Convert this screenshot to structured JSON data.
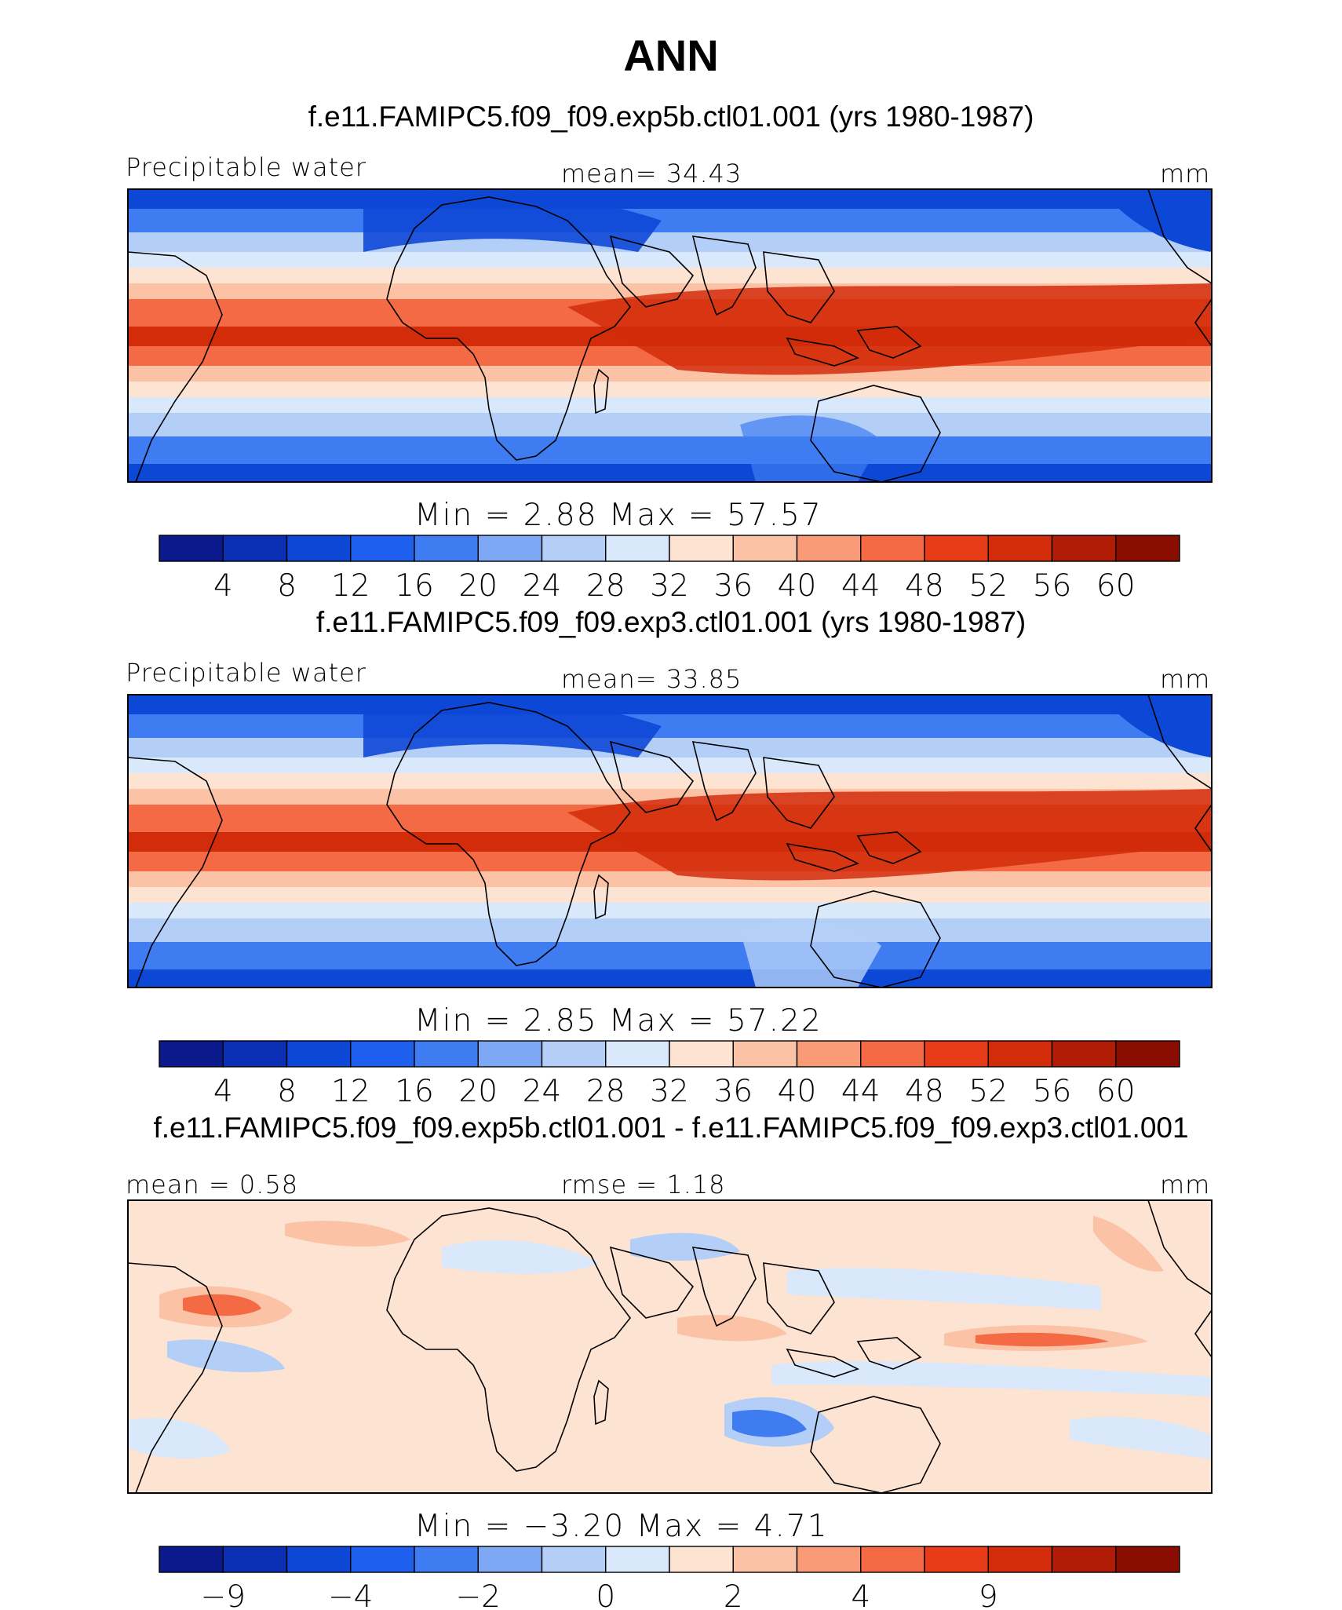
{
  "figure": {
    "title": "ANN",
    "panels": [
      {
        "case": "f.e11.FAMIPC5.f09_f09.exp5b.ctl01.001 (yrs 1980-1987)",
        "left_label": "Precipitable water",
        "center_label": "mean=   34.43",
        "units": "mm",
        "minmax": "Min  =    2.88  Max  =   57.57",
        "kind": "abs"
      },
      {
        "case": "f.e11.FAMIPC5.f09_f09.exp3.ctl01.001 (yrs 1980-1987)",
        "left_label": "Precipitable water",
        "center_label": "mean=   33.85",
        "units": "mm",
        "minmax": "Min  =    2.85  Max  =   57.22",
        "kind": "abs"
      },
      {
        "case": "f.e11.FAMIPC5.f09_f09.exp5b.ctl01.001 - f.e11.FAMIPC5.f09_f09.exp3.ctl01.001",
        "left_label": "mean  =    0.58",
        "center_label": "rmse  =    1.18",
        "units": "mm",
        "minmax": "Min  =   −3.20  Max  =    4.71",
        "kind": "diff"
      }
    ],
    "abs_colorbar": {
      "ticks": [
        "4",
        "8",
        "12",
        "16",
        "20",
        "24",
        "28",
        "32",
        "36",
        "40",
        "44",
        "48",
        "52",
        "56",
        "60"
      ],
      "colors": [
        "#0a1a8c",
        "#0a2fb5",
        "#0d47d6",
        "#1f5ff0",
        "#3f7cf2",
        "#7ea7f4",
        "#b4cff7",
        "#d9e8fb",
        "#fde3d2",
        "#fbc2a6",
        "#f89b76",
        "#f46a45",
        "#e83c18",
        "#d22c0a",
        "#b01c05",
        "#8a0d02"
      ]
    },
    "diff_colorbar": {
      "ticks": [
        "−9",
        "",
        "−4",
        "",
        "−2",
        "",
        "0",
        "",
        "2",
        "",
        "4",
        "",
        "9",
        "",
        ""
      ],
      "colors": [
        "#0a1a8c",
        "#0a2fb5",
        "#0d47d6",
        "#1f5ff0",
        "#3f7cf2",
        "#7ea7f4",
        "#b4cff7",
        "#d9e8fb",
        "#fde3d2",
        "#fbc2a6",
        "#f89b76",
        "#f46a45",
        "#e83c18",
        "#d22c0a",
        "#b01c05",
        "#8a0d02"
      ]
    },
    "map_colors": {
      "deep_blue": "#0d47d6",
      "mid_blue": "#3f7cf2",
      "light_blue": "#b4cff7",
      "pale_blue": "#d9e8fb",
      "pale_red": "#fde3d2",
      "light_red": "#fbc2a6",
      "mid_red": "#f46a45",
      "deep_red": "#d22c0a",
      "coast": "#000000"
    }
  }
}
